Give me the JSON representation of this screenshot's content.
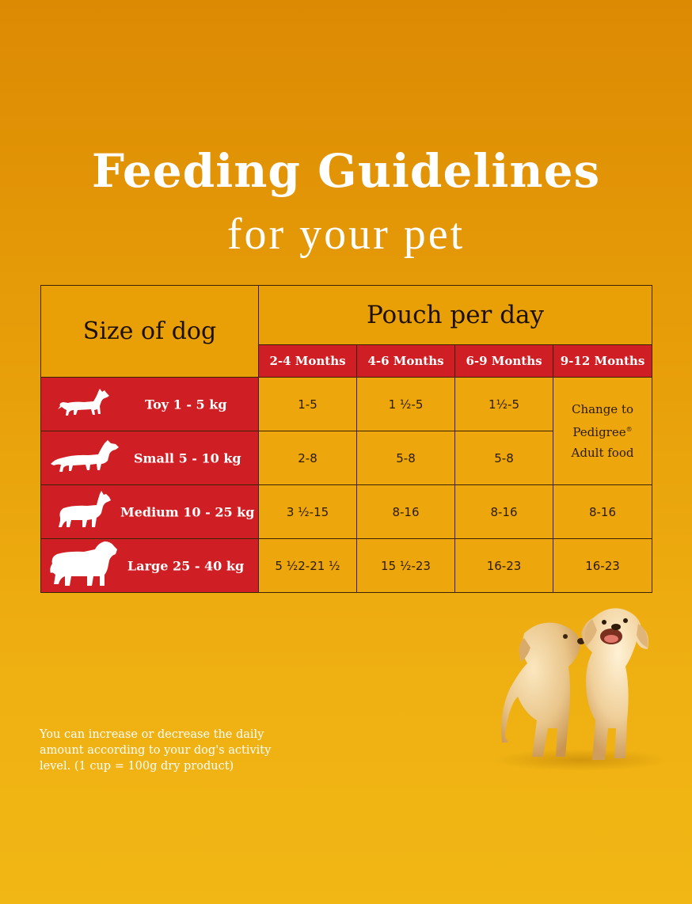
{
  "header": {
    "title": "Feeding Guidelines",
    "subtitle": "for your pet"
  },
  "table": {
    "size_header": "Size of dog",
    "pouch_header": "Pouch per day",
    "age_columns": [
      "2-4 Months",
      "4-6 Months",
      "6-9 Months",
      "9-12 Months"
    ],
    "rows": [
      {
        "size": "Toy 1 - 5 kg",
        "icon": "toy-dog-icon",
        "values": [
          "1-5",
          "1 ½-5",
          "1½-5"
        ]
      },
      {
        "size": "Small 5 - 10 kg",
        "icon": "small-dog-icon",
        "values": [
          "2-8",
          "5-8",
          "5-8"
        ]
      },
      {
        "size": "Medium 10 - 25 kg",
        "icon": "medium-dog-icon",
        "values": [
          "3 ½-15",
          "8-16",
          "8-16",
          "8-16"
        ]
      },
      {
        "size": "Large 25 - 40 kg",
        "icon": "large-dog-icon",
        "values": [
          "5 ½2-21 ½",
          "15 ½-23",
          "16-23",
          "16-23"
        ]
      }
    ],
    "change_note": {
      "line1": "Change to",
      "line2": "Pedigree",
      "reg": "®",
      "line3": "Adult food"
    }
  },
  "footer_note": "You can increase or decrease the daily amount according to your dog's activity level. (1 cup = 100g dry product)",
  "colors": {
    "background": "#e69c08",
    "header_red": "#cf1f24",
    "cell_gold": "#eda60c",
    "text_dark": "#1c1004"
  }
}
